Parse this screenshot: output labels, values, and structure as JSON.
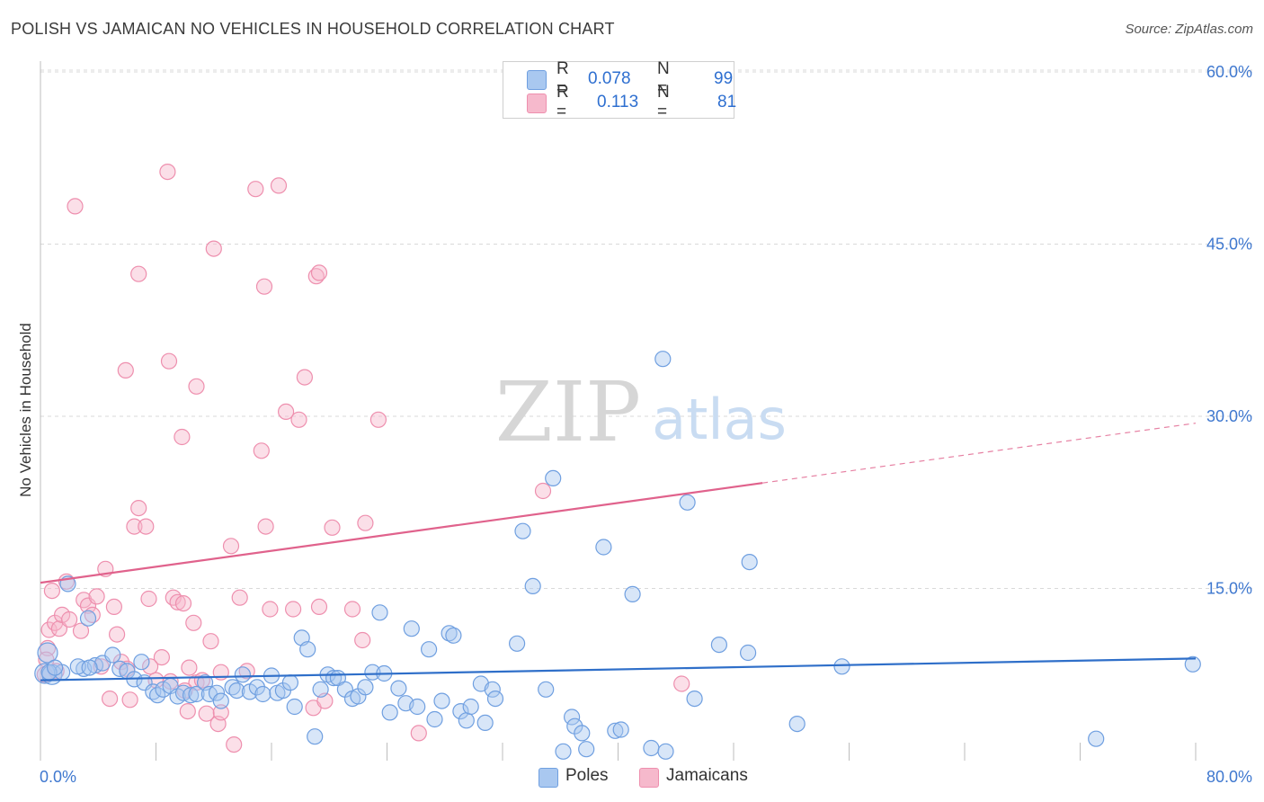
{
  "header": {
    "title": "POLISH VS JAMAICAN NO VEHICLES IN HOUSEHOLD CORRELATION CHART",
    "source": "Source: ZipAtlas.com"
  },
  "legend": {
    "poles": {
      "r_label": "R =",
      "r_value": "0.078",
      "n_label": "N =",
      "n_value": "99"
    },
    "jamaicans": {
      "r_label": "R =",
      "r_value": "0.113",
      "n_label": "N =",
      "n_value": "81"
    }
  },
  "bottom_legend": {
    "poles": "Poles",
    "jamaicans": "Jamaicans"
  },
  "watermark": {
    "zip": "ZIP",
    "atlas": "atlas"
  },
  "colors": {
    "poles_fill": "#a9c8f0",
    "poles_stroke": "#6f9fe0",
    "poles_line": "#2f6fc9",
    "jam_fill": "#f6b9cc",
    "jam_stroke": "#ee8fae",
    "jam_line": "#e0628c",
    "tick_label": "#3f78cf",
    "grid": "#d9d9d9"
  },
  "chart_data": {
    "type": "scatter",
    "title": "POLISH VS JAMAICAN NO VEHICLES IN HOUSEHOLD CORRELATION CHART",
    "xlabel": "",
    "ylabel": "No Vehicles in Household",
    "xlim": [
      0,
      80
    ],
    "ylim": [
      0,
      62
    ],
    "x_tick_labels": [
      "0.0%",
      "80.0%"
    ],
    "y_ticks": [
      15,
      30,
      45,
      60
    ],
    "y_tick_labels": [
      "15.0%",
      "30.0%",
      "45.0%",
      "60.0%"
    ],
    "grid": "horizontal dashed",
    "legend_position": "top-center",
    "series": [
      {
        "name": "Poles",
        "r": 0.078,
        "n": 99,
        "trend": {
          "x": [
            0,
            80
          ],
          "y": [
            7.0,
            8.9
          ],
          "dashed_from_x": null
        },
        "points": [
          [
            0.3,
            7.6
          ],
          [
            0.5,
            9.4
          ],
          [
            0.8,
            7.5
          ],
          [
            1.5,
            7.7
          ],
          [
            1.9,
            15.4
          ],
          [
            3.0,
            8.0
          ],
          [
            3.3,
            12.4
          ],
          [
            3.8,
            8.3
          ],
          [
            4.3,
            8.5
          ],
          [
            5.0,
            9.2
          ],
          [
            5.5,
            8.0
          ],
          [
            6.0,
            7.8
          ],
          [
            6.5,
            7.1
          ],
          [
            7.0,
            8.6
          ],
          [
            7.2,
            6.8
          ],
          [
            7.8,
            6.0
          ],
          [
            8.1,
            5.7
          ],
          [
            8.5,
            6.2
          ],
          [
            9.0,
            6.5
          ],
          [
            9.5,
            5.6
          ],
          [
            9.9,
            5.9
          ],
          [
            10.4,
            5.7
          ],
          [
            10.8,
            5.8
          ],
          [
            11.4,
            6.8
          ],
          [
            11.7,
            5.8
          ],
          [
            12.2,
            5.9
          ],
          [
            12.5,
            5.2
          ],
          [
            13.3,
            6.4
          ],
          [
            13.6,
            6.1
          ],
          [
            14.0,
            7.5
          ],
          [
            14.5,
            6.0
          ],
          [
            15.0,
            6.4
          ],
          [
            15.4,
            5.8
          ],
          [
            16.0,
            7.4
          ],
          [
            16.4,
            5.9
          ],
          [
            16.8,
            6.1
          ],
          [
            17.3,
            6.8
          ],
          [
            17.6,
            4.7
          ],
          [
            18.1,
            10.7
          ],
          [
            18.5,
            9.7
          ],
          [
            19.0,
            2.1
          ],
          [
            19.4,
            6.2
          ],
          [
            19.9,
            7.5
          ],
          [
            20.3,
            7.2
          ],
          [
            20.6,
            7.2
          ],
          [
            21.1,
            6.2
          ],
          [
            21.6,
            5.4
          ],
          [
            22.0,
            5.6
          ],
          [
            22.5,
            6.4
          ],
          [
            23.0,
            7.7
          ],
          [
            23.5,
            12.9
          ],
          [
            23.8,
            7.6
          ],
          [
            24.2,
            4.2
          ],
          [
            24.8,
            6.3
          ],
          [
            25.3,
            5.0
          ],
          [
            25.7,
            11.5
          ],
          [
            26.1,
            4.7
          ],
          [
            26.9,
            9.7
          ],
          [
            27.3,
            3.6
          ],
          [
            27.8,
            5.2
          ],
          [
            28.3,
            11.1
          ],
          [
            28.6,
            10.9
          ],
          [
            29.1,
            4.3
          ],
          [
            29.5,
            3.5
          ],
          [
            29.8,
            4.7
          ],
          [
            30.5,
            6.7
          ],
          [
            30.8,
            3.3
          ],
          [
            31.3,
            6.2
          ],
          [
            31.5,
            5.4
          ],
          [
            33.0,
            10.2
          ],
          [
            33.4,
            20.0
          ],
          [
            34.1,
            15.2
          ],
          [
            35.0,
            6.2
          ],
          [
            35.5,
            24.6
          ],
          [
            36.2,
            0.8
          ],
          [
            36.8,
            3.8
          ],
          [
            37.0,
            3.0
          ],
          [
            37.5,
            2.4
          ],
          [
            37.8,
            1.0
          ],
          [
            39.0,
            18.6
          ],
          [
            39.8,
            2.6
          ],
          [
            40.2,
            2.7
          ],
          [
            41.0,
            14.5
          ],
          [
            42.3,
            1.1
          ],
          [
            43.1,
            35.0
          ],
          [
            43.3,
            0.8
          ],
          [
            44.8,
            22.5
          ],
          [
            45.3,
            5.4
          ],
          [
            47.0,
            10.1
          ],
          [
            49.0,
            9.4
          ],
          [
            49.1,
            17.3
          ],
          [
            52.4,
            3.2
          ],
          [
            55.5,
            8.2
          ],
          [
            73.1,
            1.9
          ],
          [
            79.8,
            8.4
          ],
          [
            0.6,
            7.7
          ],
          [
            1.0,
            8.1
          ],
          [
            2.6,
            8.2
          ],
          [
            3.4,
            8.1
          ]
        ]
      },
      {
        "name": "Jamaicans",
        "r": 0.113,
        "n": 81,
        "trend": {
          "x": [
            0,
            80
          ],
          "y": [
            15.5,
            29.4
          ],
          "dashed_from_x": 50
        },
        "points": [
          [
            0.3,
            7.5
          ],
          [
            0.5,
            9.8
          ],
          [
            0.6,
            11.4
          ],
          [
            0.8,
            14.8
          ],
          [
            1.0,
            12.0
          ],
          [
            1.3,
            11.5
          ],
          [
            1.5,
            12.7
          ],
          [
            1.8,
            15.6
          ],
          [
            2.0,
            12.3
          ],
          [
            2.4,
            48.3
          ],
          [
            2.8,
            11.3
          ],
          [
            3.0,
            14.0
          ],
          [
            3.3,
            13.5
          ],
          [
            3.6,
            12.7
          ],
          [
            3.9,
            14.3
          ],
          [
            4.2,
            8.2
          ],
          [
            4.5,
            16.7
          ],
          [
            4.8,
            5.4
          ],
          [
            5.1,
            13.4
          ],
          [
            5.3,
            11.0
          ],
          [
            5.6,
            8.6
          ],
          [
            5.9,
            34.0
          ],
          [
            6.0,
            8.0
          ],
          [
            6.2,
            5.3
          ],
          [
            6.5,
            20.4
          ],
          [
            6.8,
            42.4
          ],
          [
            6.8,
            22.0
          ],
          [
            7.3,
            20.4
          ],
          [
            7.5,
            14.1
          ],
          [
            8.0,
            7.0
          ],
          [
            8.4,
            9.0
          ],
          [
            8.8,
            51.3
          ],
          [
            9.0,
            6.9
          ],
          [
            8.9,
            34.8
          ],
          [
            9.2,
            14.2
          ],
          [
            9.5,
            13.8
          ],
          [
            9.8,
            28.2
          ],
          [
            9.9,
            13.7
          ],
          [
            10.3,
            8.1
          ],
          [
            10.6,
            12.0
          ],
          [
            10.8,
            6.8
          ],
          [
            10.8,
            32.6
          ],
          [
            11.2,
            7.0
          ],
          [
            11.5,
            4.1
          ],
          [
            11.8,
            10.4
          ],
          [
            12.0,
            44.6
          ],
          [
            12.3,
            3.2
          ],
          [
            12.5,
            7.7
          ],
          [
            12.5,
            4.2
          ],
          [
            13.2,
            18.7
          ],
          [
            13.4,
            1.4
          ],
          [
            13.8,
            14.2
          ],
          [
            14.3,
            7.8
          ],
          [
            14.9,
            49.8
          ],
          [
            15.3,
            27.0
          ],
          [
            15.5,
            41.3
          ],
          [
            15.6,
            20.4
          ],
          [
            15.9,
            13.2
          ],
          [
            16.5,
            50.1
          ],
          [
            17.0,
            30.4
          ],
          [
            17.5,
            13.2
          ],
          [
            17.9,
            29.7
          ],
          [
            18.3,
            33.4
          ],
          [
            18.9,
            4.6
          ],
          [
            19.1,
            42.2
          ],
          [
            19.3,
            13.4
          ],
          [
            19.3,
            42.5
          ],
          [
            19.7,
            5.2
          ],
          [
            20.2,
            20.3
          ],
          [
            21.6,
            13.2
          ],
          [
            22.3,
            10.5
          ],
          [
            22.5,
            20.7
          ],
          [
            23.4,
            29.7
          ],
          [
            26.2,
            2.4
          ],
          [
            34.8,
            23.5
          ],
          [
            44.4,
            6.7
          ],
          [
            0.4,
            8.8
          ],
          [
            1.1,
            7.8
          ],
          [
            7.6,
            8.2
          ],
          [
            10.0,
            6.1
          ],
          [
            10.2,
            4.3
          ]
        ]
      }
    ]
  }
}
